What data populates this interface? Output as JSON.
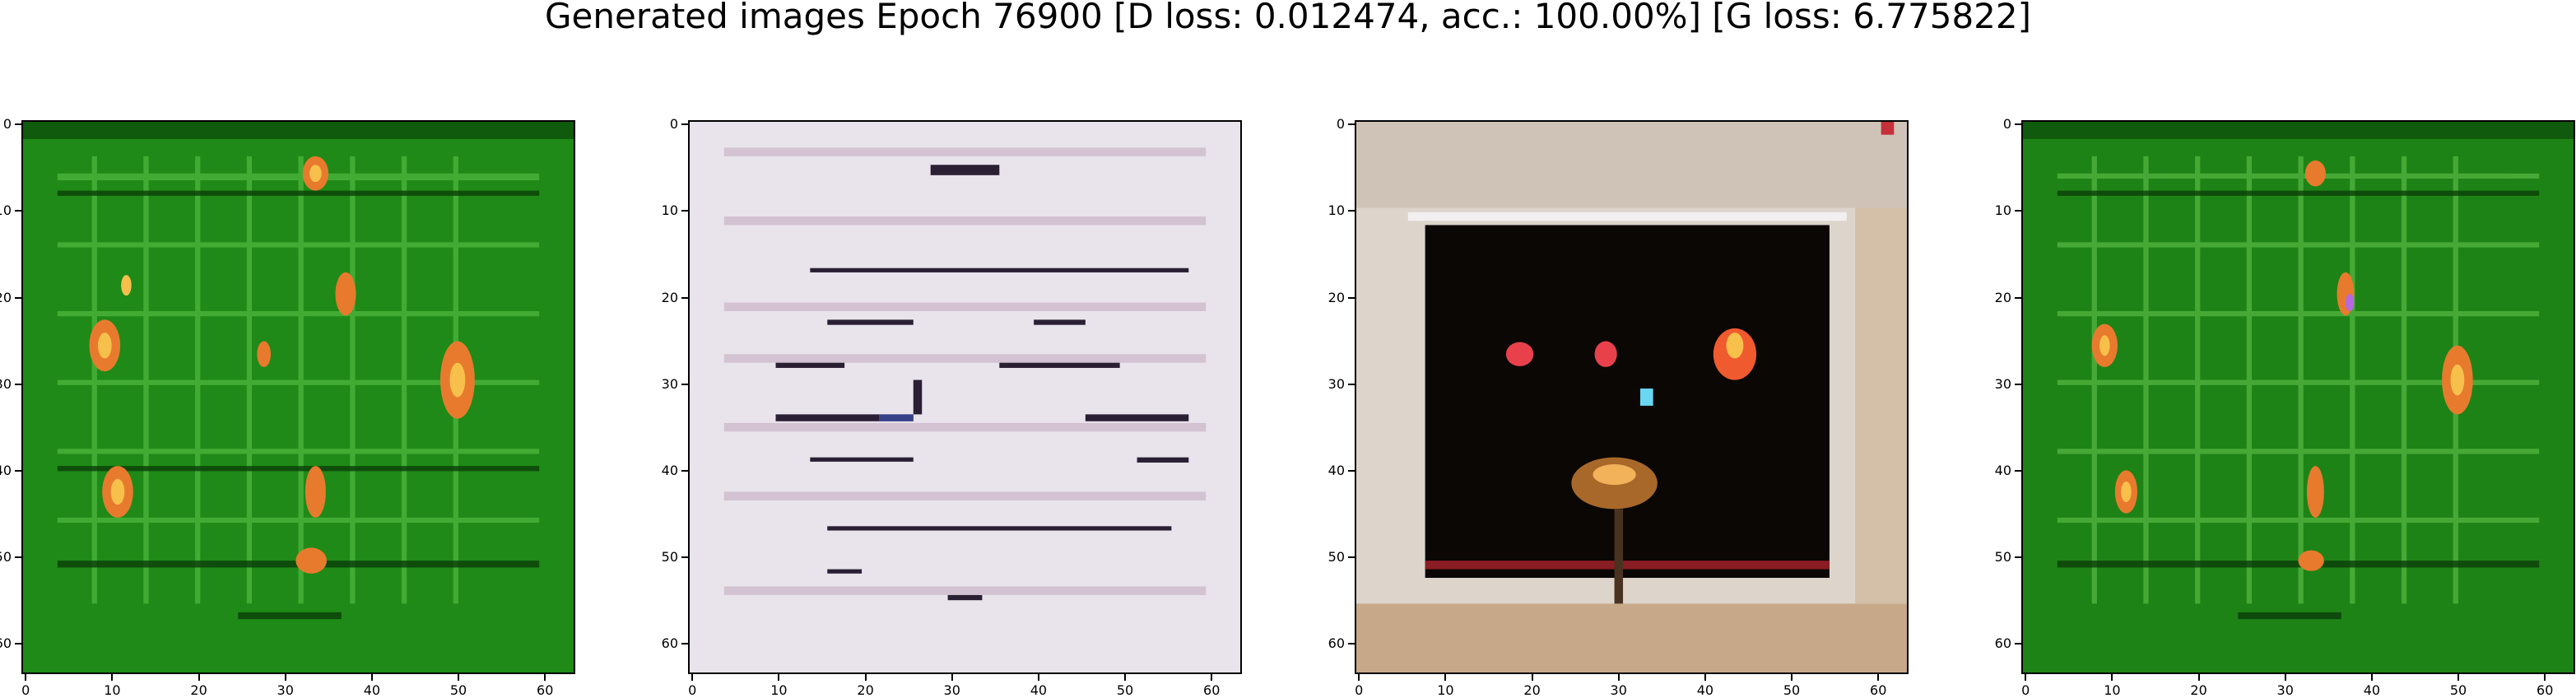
{
  "figure": {
    "suptitle": "Generated images Epoch 76900 [D loss: 0.012474, acc.: 100.00%] [G loss: 6.775822]"
  },
  "axes_ticks": {
    "x": [
      "0",
      "10",
      "20",
      "30",
      "40",
      "50",
      "60"
    ],
    "y": [
      "0",
      "10",
      "20",
      "30",
      "40",
      "50",
      "60"
    ]
  },
  "images": [
    {
      "name": "generated-image-1",
      "description_colors": {
        "bg": "#1f8a17",
        "accent": "#e06a2a"
      }
    },
    {
      "name": "generated-image-2",
      "description_colors": {
        "bg": "#e8e2ea",
        "accent": "#2a1f33"
      }
    },
    {
      "name": "generated-image-3",
      "description_colors": {
        "bg": "#d9cfc8",
        "accent": "#0a0705"
      }
    },
    {
      "name": "generated-image-4",
      "description_colors": {
        "bg": "#1e8316",
        "accent": "#e06a2a"
      }
    }
  ]
}
